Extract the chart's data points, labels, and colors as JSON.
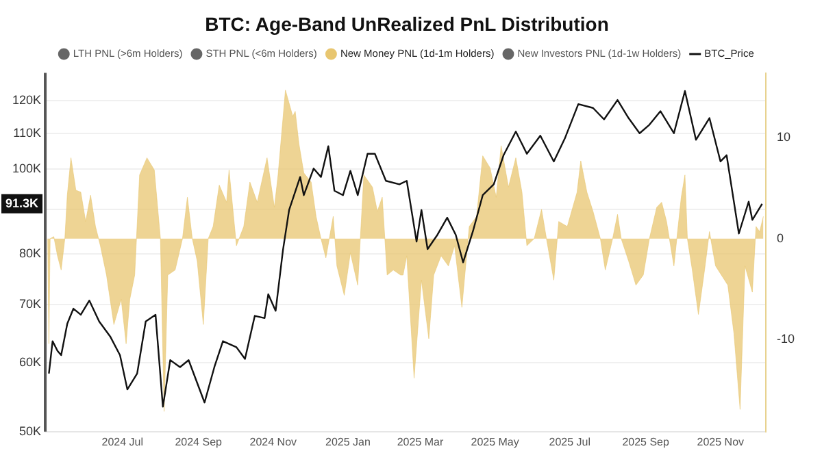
{
  "chart_data": {
    "type": "line",
    "title": "BTC: Age-Band UnRealized PnL Distribution",
    "xlim": [
      "2024-04-29",
      "2025-12-08"
    ],
    "xticks": [
      {
        "value": "2024-07-01",
        "label": "2024 Jul"
      },
      {
        "value": "2024-09-01",
        "label": "2024 Sep"
      },
      {
        "value": "2024-11-01",
        "label": "2024 Nov"
      },
      {
        "value": "2025-01-01",
        "label": "2025 Jan"
      },
      {
        "value": "2025-03-01",
        "label": "2025 Mar"
      },
      {
        "value": "2025-05-01",
        "label": "2025 May"
      },
      {
        "value": "2025-07-01",
        "label": "2025 Jul"
      },
      {
        "value": "2025-09-01",
        "label": "2025 Sep"
      },
      {
        "value": "2025-11-01",
        "label": "2025 Nov"
      }
    ],
    "log": "y",
    "ylim": [
      50000,
      129000
    ],
    "yticks": [
      {
        "value": 50000,
        "label": "50K"
      },
      {
        "value": 60000,
        "label": "60K"
      },
      {
        "value": 70000,
        "label": "70K"
      },
      {
        "value": 80000,
        "label": "80K"
      },
      {
        "value": 90000,
        "label": null
      },
      {
        "value": 100000,
        "label": "100K"
      },
      {
        "value": 110000,
        "label": "110K"
      },
      {
        "value": 120000,
        "label": "120K"
      }
    ],
    "y2lim": [
      -19.1,
      16.4
    ],
    "y2ticks": [
      -10,
      0,
      10
    ],
    "grid": "y",
    "legend": "top",
    "marker": "none",
    "annotations": [
      "91.3K"
    ],
    "series": [
      {
        "name": "LTH PNL (>6m Holders)",
        "color": "#666666",
        "type": "area",
        "axis": "y2"
      },
      {
        "name": "STH PNL (<6m Holders)",
        "color": "#666666",
        "type": "area",
        "axis": "y2"
      },
      {
        "name": "New Money PNL (1d-1m Holders)",
        "color": "#e8c670",
        "type": "area",
        "axis": "y2",
        "x": [
          "2024-05-01",
          "2024-05-02",
          "2024-05-03",
          "2024-05-06",
          "2024-05-09",
          "2024-05-12",
          "2024-05-15",
          "2024-05-17",
          "2024-05-20",
          "2024-05-24",
          "2024-05-28",
          "2024-06-01",
          "2024-06-05",
          "2024-06-09",
          "2024-06-13",
          "2024-06-18",
          "2024-06-24",
          "2024-06-30",
          "2024-07-04",
          "2024-07-07",
          "2024-07-11",
          "2024-07-15",
          "2024-07-21",
          "2024-07-27",
          "2024-08-01",
          "2024-08-04",
          "2024-08-07",
          "2024-08-13",
          "2024-08-19",
          "2024-08-23",
          "2024-08-27",
          "2024-08-31",
          "2024-09-05",
          "2024-09-09",
          "2024-09-13",
          "2024-09-18",
          "2024-09-24",
          "2024-09-26",
          "2024-10-02",
          "2024-10-08",
          "2024-10-13",
          "2024-10-19",
          "2024-10-27",
          "2024-11-02",
          "2024-11-05",
          "2024-11-11",
          "2024-11-17",
          "2024-11-19",
          "2024-11-22",
          "2024-11-26",
          "2024-12-02",
          "2024-12-06",
          "2024-12-10",
          "2024-12-14",
          "2024-12-20",
          "2024-12-23",
          "2024-12-29",
          "2025-01-03",
          "2025-01-09",
          "2025-01-14",
          "2025-01-21",
          "2025-01-25",
          "2025-01-29",
          "2025-02-02",
          "2025-02-07",
          "2025-02-13",
          "2025-02-15",
          "2025-02-18",
          "2025-02-24",
          "2025-03-02",
          "2025-03-08",
          "2025-03-12",
          "2025-03-18",
          "2025-03-24",
          "2025-03-29",
          "2025-04-04",
          "2025-04-10",
          "2025-04-16",
          "2025-04-21",
          "2025-04-27",
          "2025-05-02",
          "2025-05-06",
          "2025-05-12",
          "2025-05-18",
          "2025-05-23",
          "2025-05-27",
          "2025-06-02",
          "2025-06-08",
          "2025-06-12",
          "2025-06-18",
          "2025-06-22",
          "2025-06-29",
          "2025-07-07",
          "2025-07-10",
          "2025-07-15",
          "2025-07-20",
          "2025-07-26",
          "2025-07-30",
          "2025-08-05",
          "2025-08-09",
          "2025-08-12",
          "2025-08-18",
          "2025-08-24",
          "2025-08-30",
          "2025-09-04",
          "2025-09-10",
          "2025-09-14",
          "2025-09-18",
          "2025-09-24",
          "2025-09-30",
          "2025-10-03",
          "2025-10-05",
          "2025-10-09",
          "2025-10-14",
          "2025-10-19",
          "2025-10-23",
          "2025-10-28",
          "2025-11-07",
          "2025-11-12",
          "2025-11-17",
          "2025-11-21",
          "2025-11-27",
          "2025-11-30",
          "2025-12-03",
          "2025-12-06"
        ],
        "values": [
          0,
          -10.4,
          0,
          0.2,
          -1.7,
          -3.1,
          0,
          4.3,
          8,
          4.8,
          4.6,
          1.7,
          4.3,
          1.2,
          -0.7,
          -3.6,
          -8.5,
          -6,
          -10.4,
          -6,
          -3.6,
          6.3,
          8,
          6.8,
          0,
          -17.1,
          -3.6,
          -3.1,
          0,
          4.1,
          0,
          -2.2,
          -8.5,
          0,
          1.2,
          5.3,
          3.6,
          6.8,
          -0.7,
          1.2,
          5.6,
          3.6,
          8,
          3.1,
          6.3,
          14.7,
          12.1,
          12.6,
          9.4,
          6.5,
          5.6,
          2.2,
          0,
          -1.9,
          2.2,
          -2.7,
          -5.6,
          -1.4,
          -4.6,
          6.3,
          5.1,
          2.7,
          4.1,
          -3.6,
          -3.1,
          -3.6,
          -3.6,
          -1.7,
          -13.8,
          -4.1,
          -9.9,
          -3.6,
          -1.7,
          -2.7,
          -0.7,
          -6.8,
          1.2,
          2.2,
          8.2,
          7,
          4.1,
          9.2,
          5.1,
          8,
          4.6,
          -0.7,
          0,
          2.9,
          0,
          -4.1,
          1.7,
          1.2,
          4.6,
          7.7,
          4.6,
          2.7,
          0,
          -3.1,
          0,
          2.4,
          0,
          -2.2,
          -4.6,
          -3.6,
          0,
          3.1,
          3.6,
          1.7,
          -2.7,
          4.1,
          6.3,
          0,
          -3.1,
          -7.5,
          -3.1,
          0.7,
          -2.7,
          -4.6,
          -9.4,
          -16.9,
          -2.7,
          -5.3,
          1.2,
          0.7,
          2.2
        ]
      },
      {
        "name": "New Investors PNL (1d-1w Holders)",
        "color": "#666666",
        "type": "area",
        "axis": "y2"
      },
      {
        "name": "BTC_Price",
        "color": "#111111",
        "x": [
          "2024-05-02",
          "2024-05-05",
          "2024-05-09",
          "2024-05-12",
          "2024-05-17",
          "2024-05-22",
          "2024-05-28",
          "2024-06-04",
          "2024-06-12",
          "2024-06-21",
          "2024-06-29",
          "2024-07-05",
          "2024-07-13",
          "2024-07-20",
          "2024-07-28",
          "2024-08-03",
          "2024-08-09",
          "2024-08-17",
          "2024-08-24",
          "2024-09-06",
          "2024-09-14",
          "2024-09-21",
          "2024-10-02",
          "2024-10-09",
          "2024-10-17",
          "2024-10-25",
          "2024-10-28",
          "2024-11-03",
          "2024-11-09",
          "2024-11-14",
          "2024-11-23",
          "2024-11-26",
          "2024-12-04",
          "2024-12-10",
          "2024-12-16",
          "2024-12-21",
          "2024-12-28",
          "2025-01-03",
          "2025-01-09",
          "2025-01-17",
          "2025-01-23",
          "2025-02-01",
          "2025-02-12",
          "2025-02-18",
          "2025-02-26",
          "2025-03-02",
          "2025-03-07",
          "2025-03-15",
          "2025-03-23",
          "2025-03-30",
          "2025-04-05",
          "2025-04-13",
          "2025-04-21",
          "2025-04-30",
          "2025-05-08",
          "2025-05-18",
          "2025-05-27",
          "2025-06-07",
          "2025-06-18",
          "2025-06-27",
          "2025-07-08",
          "2025-07-20",
          "2025-07-29",
          "2025-08-09",
          "2025-08-18",
          "2025-08-27",
          "2025-09-04",
          "2025-09-13",
          "2025-09-24",
          "2025-10-03",
          "2025-10-12",
          "2025-10-23",
          "2025-11-01",
          "2025-11-06",
          "2025-11-16",
          "2025-11-24",
          "2025-11-27",
          "2025-12-05"
        ],
        "values": [
          58300,
          63500,
          61900,
          61200,
          66500,
          69200,
          68100,
          70700,
          66900,
          64300,
          61200,
          55900,
          58300,
          66900,
          68100,
          53400,
          60400,
          59300,
          60400,
          54000,
          59300,
          63500,
          62500,
          60600,
          67900,
          67500,
          71900,
          68800,
          80800,
          89800,
          98000,
          93400,
          100200,
          98000,
          106300,
          94500,
          93400,
          99600,
          93400,
          104200,
          104200,
          97000,
          96100,
          97000,
          82600,
          89800,
          81000,
          84100,
          88000,
          84100,
          78200,
          84900,
          93400,
          96100,
          103800,
          110500,
          104200,
          109300,
          102100,
          108500,
          118800,
          117600,
          114100,
          120100,
          114500,
          110000,
          112500,
          116600,
          110000,
          123000,
          108100,
          114500,
          102100,
          103800,
          84400,
          91800,
          87500,
          91300
        ]
      }
    ]
  }
}
